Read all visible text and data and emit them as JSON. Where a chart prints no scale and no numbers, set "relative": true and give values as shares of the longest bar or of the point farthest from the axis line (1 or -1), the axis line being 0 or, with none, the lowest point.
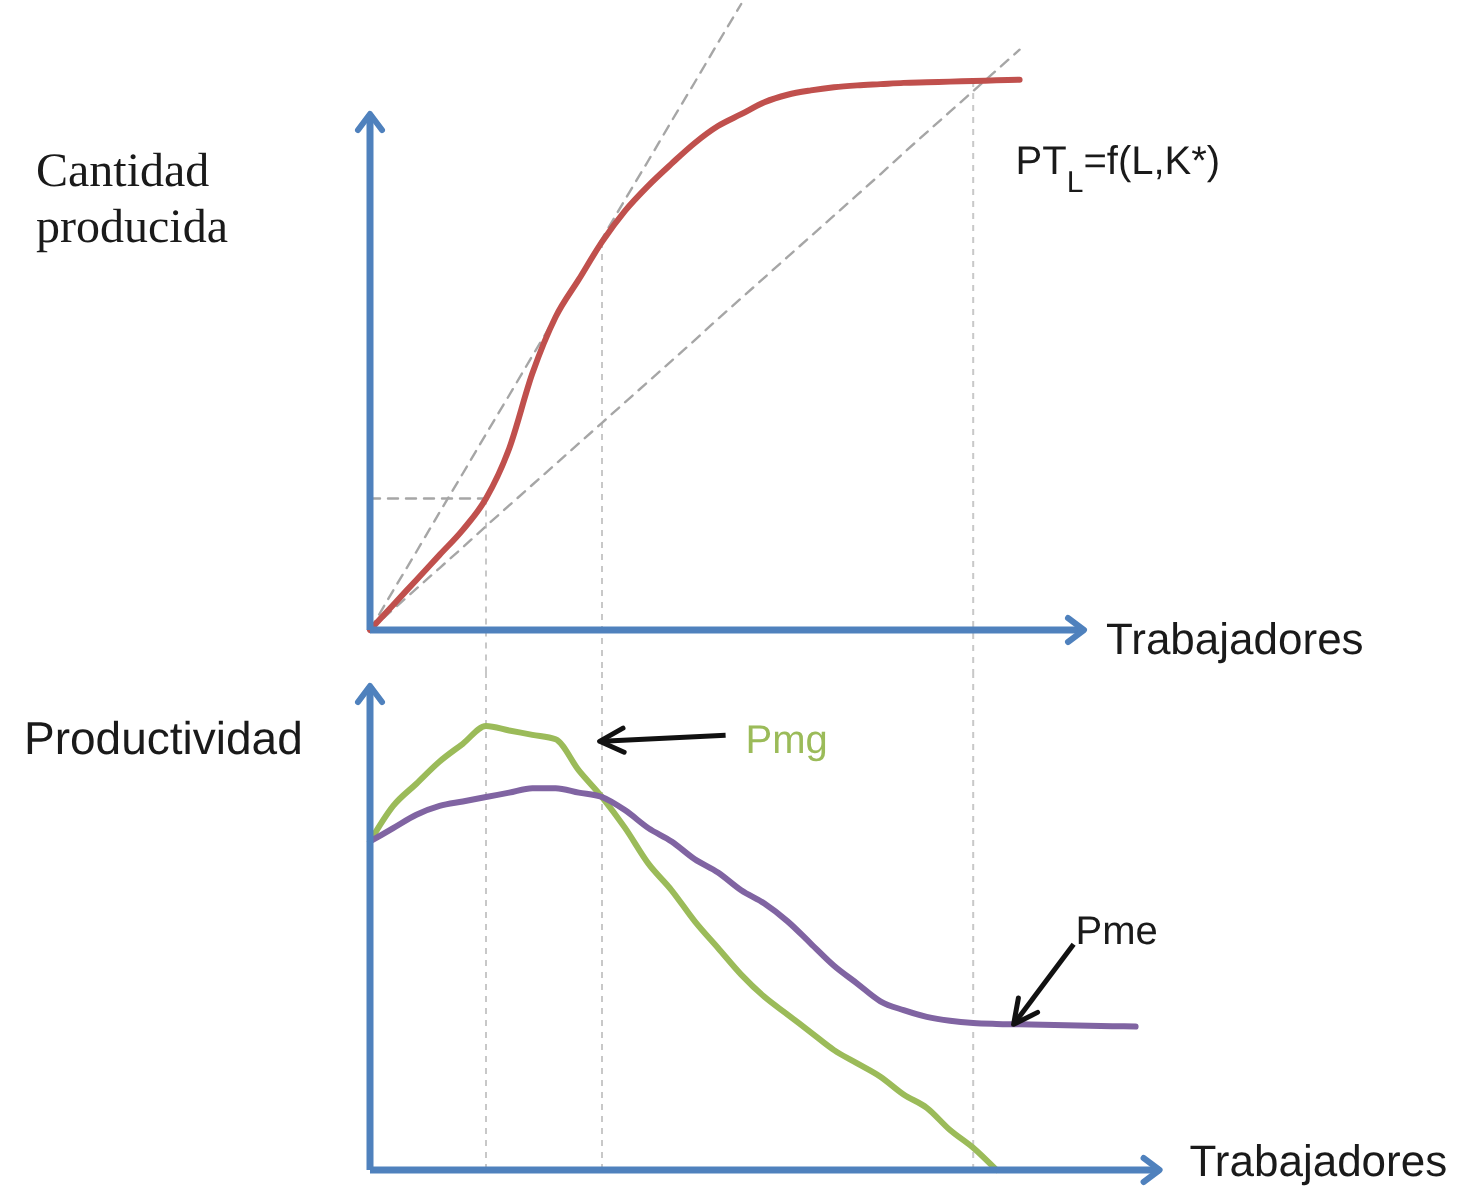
{
  "chart_data": [
    {
      "type": "line",
      "relative": true,
      "xlabel": "Trabajadores",
      "ylabel": "Cantidad producida",
      "categories": [
        null,
        null,
        null,
        null,
        null,
        null,
        null,
        null,
        null,
        null,
        null,
        null,
        null,
        null,
        null,
        null,
        null,
        null,
        null,
        null,
        null,
        null,
        null,
        null,
        null,
        null,
        null,
        null,
        null,
        null,
        null
      ],
      "series": [
        {
          "color": "#a6a6a6",
          "line_style": "dashed",
          "values": [
            0.21,
            0.21,
            0.21,
            0.21,
            0.21,
            0.21,
            null,
            null,
            null,
            null,
            null,
            null,
            null,
            null,
            null,
            null,
            null,
            null,
            null,
            null,
            null,
            null,
            null,
            null,
            null,
            null,
            null,
            null,
            null,
            null,
            null
          ]
        },
        {
          "color": "#a6a6a6",
          "line_style": "dashed",
          "values": [
            0,
            0.063,
            0.125,
            0.188,
            0.25,
            0.313,
            0.375,
            0.438,
            0.5,
            0.563,
            0.625,
            0.688,
            0.75,
            0.813,
            0.875,
            0.938,
            1,
            null,
            null,
            null,
            null,
            null,
            null,
            null,
            null,
            null,
            null,
            null,
            null,
            null,
            null
          ]
        },
        {
          "color": "#a6a6a6",
          "line_style": "dashed",
          "values": [
            0,
            0.033,
            0.066,
            0.099,
            0.132,
            0.166,
            0.199,
            0.232,
            0.265,
            0.298,
            0.331,
            0.364,
            0.397,
            0.43,
            0.463,
            0.497,
            0.53,
            0.563,
            0.596,
            0.629,
            0.662,
            0.695,
            0.728,
            0.762,
            0.795,
            0.828,
            0.861,
            0.894,
            0.927,
            null,
            null
          ]
        },
        {
          "name": "PT$_{L}$=f(L,K*)",
          "color": "#c0504d",
          "values": [
            0,
            0.04,
            0.08,
            0.12,
            0.16,
            0.21,
            0.29,
            0.41,
            0.5,
            0.56,
            0.62,
            0.67,
            0.71,
            0.745,
            0.778,
            0.805,
            0.824,
            0.843,
            0.855,
            0.862,
            0.867,
            0.87,
            0.872,
            0.874,
            0.875,
            0.876,
            0.877,
            0.878,
            0.879,
            null,
            null
          ]
        }
      ]
    },
    {
      "type": "line",
      "relative": true,
      "xlabel": "Trabajadores",
      "ylabel": "Productividad",
      "grid": "x",
      "categories": [
        null,
        null,
        null,
        null,
        null,
        null,
        null,
        null,
        null,
        null,
        null,
        null,
        null,
        null,
        null,
        null,
        null,
        null,
        null,
        null,
        null,
        null,
        null,
        null,
        null,
        null,
        null,
        null,
        null,
        null,
        null,
        null,
        null,
        null
      ],
      "series": [
        {
          "name": "Pmg",
          "color": "#9bbb59",
          "values": [
            0.74,
            0.82,
            0.87,
            0.92,
            0.96,
            1,
            0.99,
            0.98,
            0.97,
            0.9,
            0.84,
            0.77,
            0.69,
            0.63,
            0.56,
            0.5,
            0.44,
            0.39,
            0.35,
            0.31,
            0.27,
            0.24,
            0.21,
            0.17,
            0.14,
            0.09,
            0.05,
            0,
            null,
            null,
            null,
            null,
            null,
            null
          ]
        },
        {
          "name": "Pme",
          "color": "#8064a2",
          "values": [
            0.74,
            0.77,
            0.8,
            0.82,
            0.83,
            0.84,
            0.85,
            0.86,
            0.86,
            0.85,
            0.84,
            0.81,
            0.77,
            0.74,
            0.7,
            0.67,
            0.63,
            0.6,
            0.56,
            0.51,
            0.46,
            0.42,
            0.38,
            0.36,
            0.345,
            0.336,
            0.331,
            0.329,
            0.328,
            0.327,
            0.326,
            0.325,
            0.324,
            0.323
          ]
        }
      ]
    }
  ]
}
